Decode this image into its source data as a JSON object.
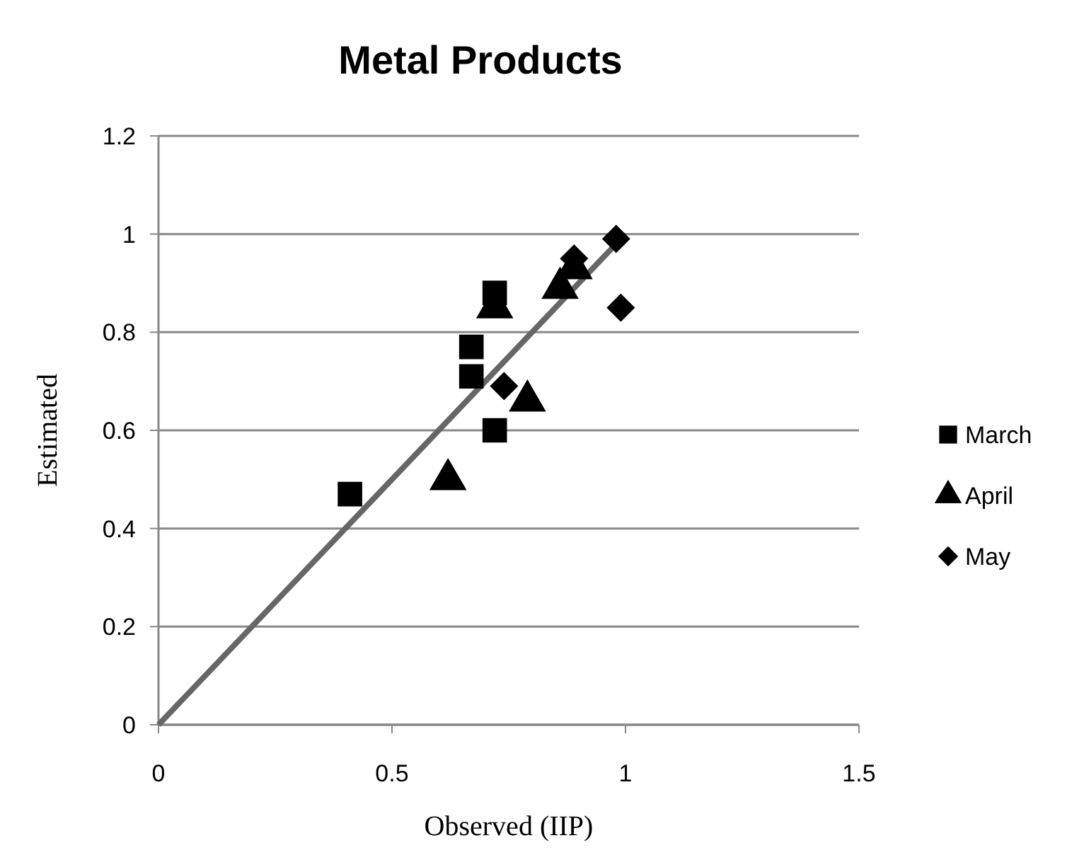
{
  "chart_data": {
    "type": "scatter",
    "title": "Metal Products",
    "xlabel": "Observed (IIP)",
    "ylabel": "Estimated",
    "xlim": [
      0,
      1.5
    ],
    "xticks": [
      0,
      0.5,
      1,
      1.5
    ],
    "ylim": [
      0,
      1.2
    ],
    "yticks": [
      0,
      0.2,
      0.4,
      0.6,
      0.8,
      1,
      1.2
    ],
    "grid": "y",
    "legend": "right",
    "series": [
      {
        "type": "line",
        "color": "#666666",
        "x": [
          0,
          0.98
        ],
        "values": [
          0,
          0.98
        ]
      },
      {
        "name": "March",
        "color": "#000000",
        "marker": "square",
        "x": [
          0.41,
          0.67,
          0.67,
          0.72,
          0.72
        ],
        "values": [
          0.47,
          0.77,
          0.71,
          0.6,
          0.88
        ]
      },
      {
        "name": "April",
        "color": "#000000",
        "marker": "triangle",
        "x": [
          0.62,
          0.72,
          0.79,
          0.86,
          0.89
        ],
        "values": [
          0.5,
          0.85,
          0.66,
          0.89,
          0.93
        ]
      },
      {
        "name": "May",
        "color": "#000000",
        "marker": "diamond",
        "x": [
          0.74,
          0.89,
          0.98,
          0.99
        ],
        "values": [
          0.69,
          0.95,
          0.99,
          0.85
        ]
      }
    ]
  }
}
